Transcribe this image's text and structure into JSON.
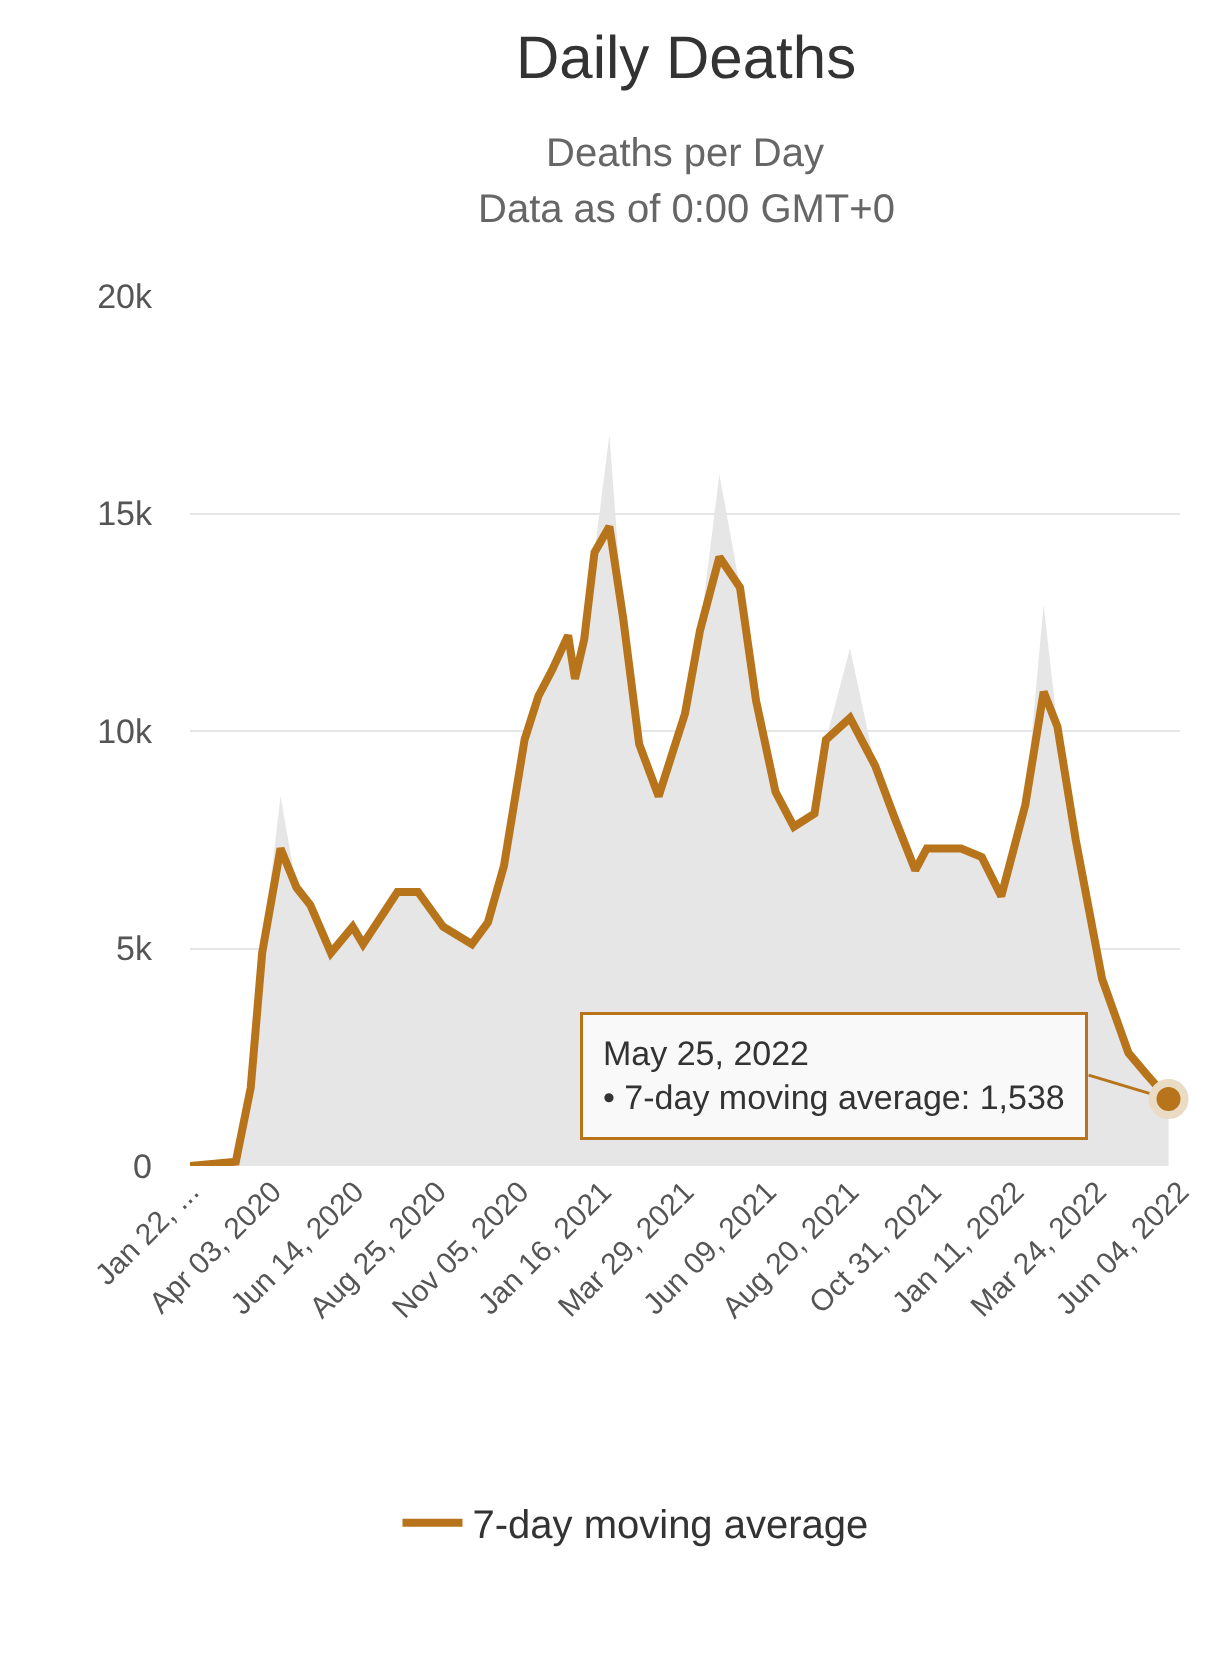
{
  "chart_data": {
    "type": "area",
    "title": "Daily Deaths",
    "subtitle": "Deaths per Day\nData as of 0:00 GMT+0",
    "x": [
      "2020-01-22",
      "2020-03-02",
      "2020-03-15",
      "2020-03-25",
      "2020-04-10",
      "2020-04-24",
      "2020-05-06",
      "2020-05-24",
      "2020-06-12",
      "2020-06-21",
      "2020-07-21",
      "2020-08-08",
      "2020-08-30",
      "2020-09-24",
      "2020-10-08",
      "2020-10-22",
      "2020-11-09",
      "2020-11-21",
      "2020-12-03",
      "2020-12-17",
      "2020-12-23",
      "2020-12-31",
      "2021-01-09",
      "2021-01-22",
      "2021-02-03",
      "2021-02-17",
      "2021-03-06",
      "2021-03-29",
      "2021-04-11",
      "2021-04-28",
      "2021-05-16",
      "2021-05-30",
      "2021-06-16",
      "2021-07-02",
      "2021-07-20",
      "2021-07-30",
      "2021-08-20",
      "2021-09-11",
      "2021-09-28",
      "2021-10-16",
      "2021-10-26",
      "2021-11-25",
      "2021-12-13",
      "2021-12-30",
      "2022-01-20",
      "2022-02-05",
      "2022-02-17",
      "2022-03-05",
      "2022-03-28",
      "2022-04-20",
      "2022-05-06",
      "2022-05-25"
    ],
    "series": [
      {
        "color": "#e6e6e6",
        "values": [
          0,
          100,
          1800,
          4900,
          8500,
          6400,
          6000,
          4900,
          5500,
          5100,
          6300,
          6300,
          5500,
          5100,
          5600,
          6900,
          9800,
          10800,
          11400,
          12200,
          11200,
          12100,
          14100,
          16800,
          12600,
          9700,
          8500,
          10400,
          12300,
          15900,
          13300,
          10700,
          8600,
          7800,
          8100,
          9800,
          11900,
          9200,
          8000,
          6800,
          7300,
          7300,
          7100,
          6200,
          8300,
          12900,
          10100,
          7500,
          4300,
          2600,
          2100,
          1538
        ]
      },
      {
        "type": "line",
        "name": "7-day moving average",
        "color": "#b8741a",
        "values": [
          0,
          100,
          1800,
          4900,
          7300,
          6400,
          6000,
          4900,
          5500,
          5100,
          6300,
          6300,
          5500,
          5100,
          5600,
          6900,
          9800,
          10800,
          11400,
          12200,
          11200,
          12100,
          14100,
          14700,
          12600,
          9700,
          8500,
          10400,
          12300,
          14000,
          13300,
          10700,
          8600,
          7800,
          8100,
          9800,
          10300,
          9200,
          8000,
          6800,
          7300,
          7300,
          7100,
          6200,
          8300,
          10900,
          10100,
          7500,
          4300,
          2600,
          2100,
          1538
        ]
      }
    ],
    "xlim": [
      "2020-01-22",
      "2022-06-04"
    ],
    "xticks": [
      {
        "value": "2020-01-22",
        "label": "Jan 22, ..."
      },
      {
        "value": "2020-04-03",
        "label": "Apr 03, 2020"
      },
      {
        "value": "2020-06-14",
        "label": "Jun 14, 2020"
      },
      {
        "value": "2020-08-25",
        "label": "Aug 25, 2020"
      },
      {
        "value": "2020-11-05",
        "label": "Nov 05, 2020"
      },
      {
        "value": "2021-01-16",
        "label": "Jan 16, 2021"
      },
      {
        "value": "2021-03-29",
        "label": "Mar 29, 2021"
      },
      {
        "value": "2021-06-09",
        "label": "Jun 09, 2021"
      },
      {
        "value": "2021-08-20",
        "label": "Aug 20, 2021"
      },
      {
        "value": "2021-10-31",
        "label": "Oct 31, 2021"
      },
      {
        "value": "2022-01-11",
        "label": "Jan 11, 2022"
      },
      {
        "value": "2022-03-24",
        "label": "Mar 24, 2022"
      },
      {
        "value": "2022-06-04",
        "label": "Jun 04, 2022"
      }
    ],
    "ylim": [
      0,
      20000
    ],
    "yticks": [
      0,
      {
        "value": 5000,
        "label": "5k"
      },
      {
        "value": 10000,
        "label": "10k"
      },
      {
        "value": 15000,
        "label": "15k"
      },
      {
        "value": 20000,
        "label": "20k"
      }
    ],
    "grid": "y",
    "legend": "bottom",
    "marker": "none",
    "line_style": "solid",
    "annotations": [
      {
        "text": "May 25, 2022\n• 7-day moving average: 1,538",
        "x": "2022-05-25",
        "y": 1538
      }
    ]
  }
}
